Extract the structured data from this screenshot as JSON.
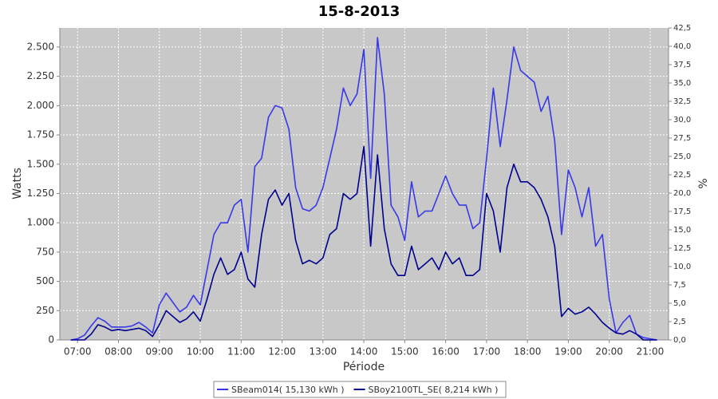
{
  "chart_data": {
    "type": "line",
    "title": "15-8-2013",
    "x_label": "Période",
    "y_label": "Watts",
    "y2_label": "%",
    "x": [
      "06:50",
      "07:00",
      "07:10",
      "07:20",
      "07:30",
      "07:40",
      "07:50",
      "08:00",
      "08:10",
      "08:20",
      "08:30",
      "08:40",
      "08:50",
      "09:00",
      "09:10",
      "09:20",
      "09:30",
      "09:40",
      "09:50",
      "10:00",
      "10:10",
      "10:20",
      "10:30",
      "10:40",
      "10:50",
      "11:00",
      "11:10",
      "11:20",
      "11:30",
      "11:40",
      "11:50",
      "12:00",
      "12:10",
      "12:20",
      "12:30",
      "12:40",
      "12:50",
      "13:00",
      "13:10",
      "13:20",
      "13:30",
      "13:40",
      "13:50",
      "14:00",
      "14:10",
      "14:20",
      "14:30",
      "14:40",
      "14:50",
      "15:00",
      "15:10",
      "15:20",
      "15:30",
      "15:40",
      "15:50",
      "16:00",
      "16:10",
      "16:20",
      "16:30",
      "16:40",
      "16:50",
      "17:00",
      "17:10",
      "17:20",
      "17:30",
      "17:40",
      "17:50",
      "18:00",
      "18:10",
      "18:20",
      "18:30",
      "18:40",
      "18:50",
      "19:00",
      "19:10",
      "19:20",
      "19:30",
      "19:40",
      "19:50",
      "20:00",
      "20:10",
      "20:20",
      "20:30",
      "20:40",
      "20:50",
      "21:00",
      "21:10"
    ],
    "series": [
      {
        "name": "SBeam014( 15,130 kWh )",
        "color": "#3838e8",
        "values": [
          0,
          10,
          40,
          120,
          190,
          160,
          110,
          110,
          110,
          120,
          150,
          110,
          60,
          300,
          400,
          320,
          240,
          280,
          380,
          300,
          600,
          900,
          1000,
          1000,
          1150,
          1200,
          750,
          1480,
          1550,
          1900,
          2000,
          1980,
          1800,
          1300,
          1120,
          1100,
          1150,
          1300,
          1550,
          1800,
          2150,
          2000,
          2100,
          2480,
          1380,
          2580,
          2100,
          1150,
          1050,
          850,
          1350,
          1050,
          1100,
          1100,
          1250,
          1400,
          1250,
          1150,
          1150,
          950,
          1000,
          1550,
          2150,
          1650,
          2050,
          2500,
          2300,
          2250,
          2200,
          1950,
          2080,
          1700,
          900,
          1450,
          1300,
          1050,
          1300,
          800,
          900,
          350,
          60,
          150,
          210,
          50,
          20,
          10,
          0
        ]
      },
      {
        "name": "SBoy2100TL_SE( 8,214 kWh )",
        "color": "#000090",
        "values": [
          0,
          0,
          0,
          50,
          130,
          110,
          80,
          90,
          80,
          90,
          100,
          80,
          30,
          130,
          250,
          200,
          150,
          180,
          240,
          160,
          350,
          560,
          700,
          560,
          600,
          750,
          520,
          450,
          900,
          1200,
          1280,
          1150,
          1250,
          850,
          650,
          680,
          650,
          700,
          900,
          950,
          1250,
          1200,
          1250,
          1650,
          800,
          1580,
          950,
          650,
          550,
          550,
          800,
          600,
          650,
          700,
          600,
          750,
          650,
          700,
          550,
          550,
          600,
          1250,
          1100,
          750,
          1300,
          1500,
          1350,
          1350,
          1300,
          1200,
          1050,
          800,
          200,
          270,
          220,
          240,
          280,
          220,
          150,
          100,
          60,
          50,
          80,
          50,
          0,
          0,
          0
        ]
      }
    ],
    "xlim": [
      "06:34",
      "21:27"
    ],
    "xticks": [
      "07:00",
      "08:00",
      "09:00",
      "10:00",
      "11:00",
      "12:00",
      "13:00",
      "14:00",
      "15:00",
      "16:00",
      "17:00",
      "18:00",
      "19:00",
      "20:00",
      "21:00"
    ],
    "ylim": [
      0,
      2663
    ],
    "yticks": [
      0,
      250,
      500,
      750,
      {
        "value": 1000,
        "label": "1.000"
      },
      {
        "value": 1250,
        "label": "1.250"
      },
      {
        "value": 1500,
        "label": "1.500"
      },
      {
        "value": 1750,
        "label": "1.750"
      },
      {
        "value": 2000,
        "label": "2.000"
      },
      {
        "value": 2250,
        "label": "2.250"
      },
      {
        "value": 2500,
        "label": "2.500"
      }
    ],
    "y2lim": [
      0,
      42.5
    ],
    "y2ticks": [
      {
        "value": 0,
        "label": "0,0"
      },
      {
        "value": 2.5,
        "label": "2,5"
      },
      {
        "value": 5,
        "label": "5,0"
      },
      {
        "value": 7.5,
        "label": "7,5"
      },
      {
        "value": 10,
        "label": "10,0"
      },
      {
        "value": 12.5,
        "label": "12,5"
      },
      {
        "value": 15,
        "label": "15,0"
      },
      {
        "value": 17.5,
        "label": "17,5"
      },
      {
        "value": 20,
        "label": "20,0"
      },
      {
        "value": 22.5,
        "label": "22,5"
      },
      {
        "value": 25,
        "label": "25,0"
      },
      {
        "value": 27.5,
        "label": "27,5"
      },
      {
        "value": 30,
        "label": "30,0"
      },
      {
        "value": 32.5,
        "label": "32,5"
      },
      {
        "value": 35,
        "label": "35,0"
      },
      {
        "value": 37.5,
        "label": "37,5"
      },
      {
        "value": 40,
        "label": "40,0"
      },
      {
        "value": 42.5,
        "label": "42,5"
      }
    ],
    "grid": true,
    "legend": "bottom"
  }
}
